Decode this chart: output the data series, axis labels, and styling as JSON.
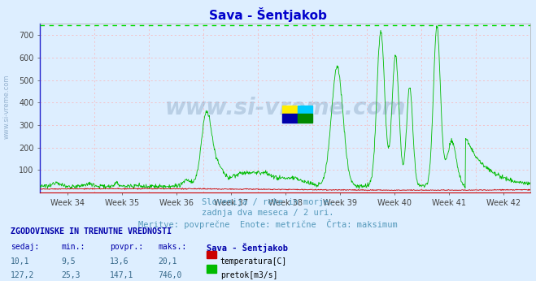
{
  "title": "Sava - Šentjakob",
  "background_color": "#ddeeff",
  "plot_bg_color": "#ddeeff",
  "ylim": [
    0,
    750
  ],
  "yticks": [
    100,
    200,
    300,
    400,
    500,
    600,
    700
  ],
  "week_labels": [
    "Week 34",
    "Week 35",
    "Week 36",
    "Week 37",
    "Week 38",
    "Week 39",
    "Week 40",
    "Week 41",
    "Week 42"
  ],
  "grid_color": "#ffaaaa",
  "max_line_color": "#00dd00",
  "max_line_value": 746.0,
  "temp_color": "#cc0000",
  "flow_color": "#00bb00",
  "title_color": "#0000cc",
  "subtitle_line1": "Slovenija / reke in morje.",
  "subtitle_line2": "zadnja dva meseca / 2 uri.",
  "subtitle_line3": "Meritve: povprečne  Enote: metrične  Črta: maksimum",
  "subtitle_color": "#5599bb",
  "table_title": "ZGODOVINSKE IN TRENUTNE VREDNOSTI",
  "col_headers": [
    "sedaj:",
    "min.:",
    "povpr.:",
    "maks.:",
    "Sava - Šentjakob"
  ],
  "row1_vals": [
    "10,1",
    "9,5",
    "13,6",
    "20,1"
  ],
  "row1_label": "temperatura[C]",
  "row1_color": "#cc0000",
  "row2_vals": [
    "127,2",
    "25,3",
    "147,1",
    "746,0"
  ],
  "row2_label": "pretok[m3/s]",
  "row2_color": "#00bb00",
  "watermark": "www.si-vreme.com",
  "left_watermark": "www.si-vreme.com",
  "num_points": 1080,
  "logo_yellow": "#ffee00",
  "logo_cyan": "#00ccff",
  "logo_blue": "#0000aa",
  "logo_green": "#008800"
}
